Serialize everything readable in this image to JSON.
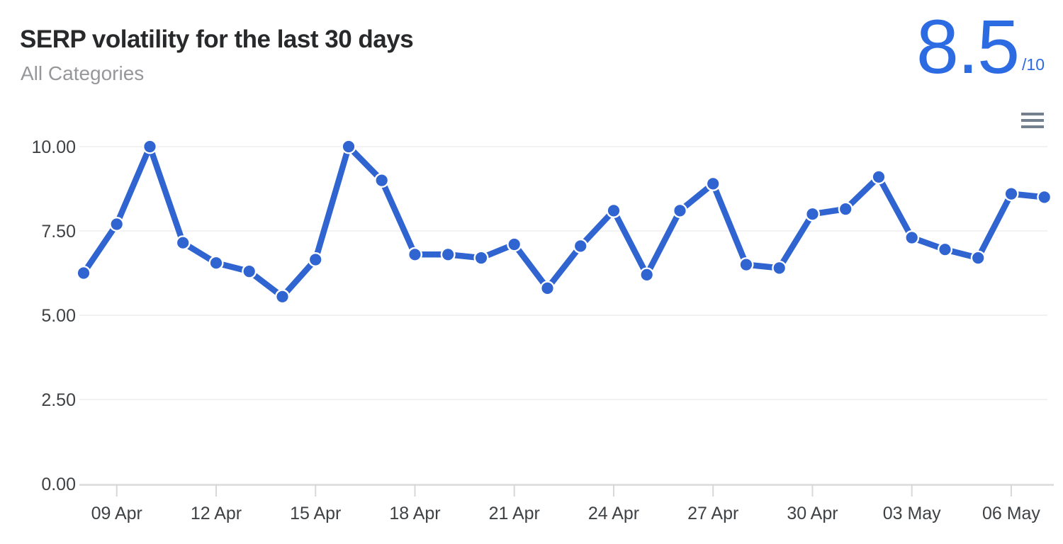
{
  "header": {
    "title": "SERP volatility for the last 30 days",
    "subtitle": "All Categories",
    "score_value": "8.5",
    "score_denominator": "/10"
  },
  "icons": {
    "menu": "hamburger-icon"
  },
  "colors": {
    "score_blue": "#2d6be3",
    "line_blue": "#3064d0",
    "marker_blue": "#3064d0",
    "marker_border": "#ffffff",
    "gridline": "#e6e6e6",
    "axis_line": "#e0e0e0",
    "tick": "#d8d8d8",
    "axis_label": "#3f4245",
    "title_text": "#28292b",
    "subtitle_text": "#96979a",
    "menu_icon": "#75808f"
  },
  "chart_data": {
    "type": "line",
    "title": "SERP volatility for the last 30 days",
    "subtitle": "All Categories",
    "x": [
      "08 Apr",
      "09 Apr",
      "10 Apr",
      "11 Apr",
      "12 Apr",
      "13 Apr",
      "14 Apr",
      "15 Apr",
      "16 Apr",
      "17 Apr",
      "18 Apr",
      "19 Apr",
      "20 Apr",
      "21 Apr",
      "22 Apr",
      "23 Apr",
      "24 Apr",
      "25 Apr",
      "26 Apr",
      "27 Apr",
      "28 Apr",
      "29 Apr",
      "30 Apr",
      "01 May",
      "02 May",
      "03 May",
      "04 May",
      "05 May",
      "06 May",
      "07 May"
    ],
    "values": [
      6.25,
      7.7,
      10.0,
      7.15,
      6.55,
      6.3,
      5.55,
      6.65,
      10.0,
      9.0,
      6.8,
      6.8,
      6.7,
      7.1,
      5.8,
      7.05,
      8.1,
      6.2,
      8.1,
      8.9,
      6.5,
      6.4,
      8.0,
      8.15,
      9.1,
      7.3,
      6.95,
      6.7,
      8.6,
      8.5
    ],
    "series_name": "SERP volatility",
    "ylim": [
      0,
      10
    ],
    "yticks": [
      0,
      2.5,
      5,
      7.5,
      10
    ],
    "ytick_labels": [
      "0.00",
      "2.50",
      "5.00",
      "7.50",
      "10.00"
    ],
    "xtick_indices": [
      1,
      4,
      7,
      10,
      13,
      16,
      19,
      22,
      25,
      28
    ],
    "xtick_labels": [
      "09 Apr",
      "12 Apr",
      "15 Apr",
      "18 Apr",
      "21 Apr",
      "24 Apr",
      "27 Apr",
      "30 Apr",
      "03 May",
      "06 May"
    ],
    "grid": true,
    "legend": false,
    "line_color": "#3064d0",
    "marker_color": "#3064d0",
    "marker_border_color": "#ffffff"
  }
}
